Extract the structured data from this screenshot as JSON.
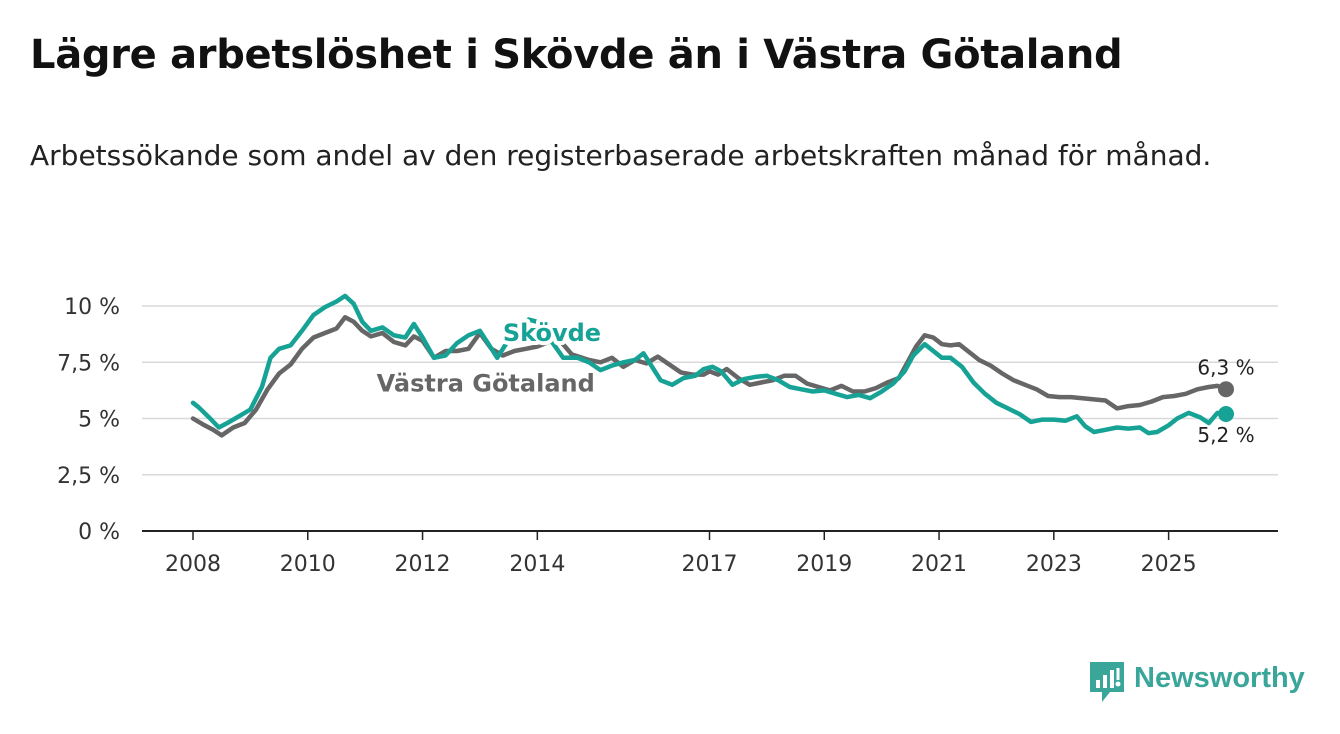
{
  "header": {
    "title": "Lägre arbetslöshet i Skövde än i Västra Götaland",
    "subtitle": "Arbetssökande som andel av den registerbaserade arbetskraften månad för månad."
  },
  "brand": {
    "name": "Newsworthy",
    "color": "#3aa69a"
  },
  "chart_data": {
    "type": "line",
    "title": "Lägre arbetslöshet i Skövde än i Västra Götaland",
    "subtitle": "Arbetssökande som andel av den registerbaserade arbetskraften månad för månad.",
    "xlabel": "",
    "ylabel": "",
    "x_range": [
      2008.0,
      2026.0
    ],
    "ylim": [
      0,
      10
    ],
    "grid": true,
    "x_ticks": [
      {
        "value": 2008,
        "label": "2008"
      },
      {
        "value": 2010,
        "label": "2010"
      },
      {
        "value": 2012,
        "label": "2012"
      },
      {
        "value": 2014,
        "label": "2014"
      },
      {
        "value": 2017,
        "label": "2017"
      },
      {
        "value": 2019,
        "label": "2019"
      },
      {
        "value": 2021,
        "label": "2021"
      },
      {
        "value": 2023,
        "label": "2023"
      },
      {
        "value": 2025,
        "label": "2025"
      }
    ],
    "y_ticks": [
      {
        "value": 0,
        "label": "0 %"
      },
      {
        "value": 2.5,
        "label": "2,5 %"
      },
      {
        "value": 5,
        "label": "5 %"
      },
      {
        "value": 7.5,
        "label": "7,5 %"
      },
      {
        "value": 10,
        "label": "10 %"
      }
    ],
    "series": [
      {
        "name": "Västra Götaland",
        "color": "#666666",
        "end_label": "6,3 %",
        "label_at": [
          2011.2,
          6.2
        ],
        "points": [
          [
            2008.0,
            5.0
          ],
          [
            2008.2,
            4.7
          ],
          [
            2008.35,
            4.5
          ],
          [
            2008.5,
            4.25
          ],
          [
            2008.7,
            4.6
          ],
          [
            2008.9,
            4.8
          ],
          [
            2009.1,
            5.4
          ],
          [
            2009.3,
            6.3
          ],
          [
            2009.5,
            7.0
          ],
          [
            2009.7,
            7.4
          ],
          [
            2009.9,
            8.1
          ],
          [
            2010.1,
            8.6
          ],
          [
            2010.3,
            8.8
          ],
          [
            2010.5,
            9.0
          ],
          [
            2010.65,
            9.5
          ],
          [
            2010.8,
            9.3
          ],
          [
            2010.95,
            8.9
          ],
          [
            2011.1,
            8.65
          ],
          [
            2011.3,
            8.8
          ],
          [
            2011.5,
            8.4
          ],
          [
            2011.7,
            8.25
          ],
          [
            2011.85,
            8.65
          ],
          [
            2012.0,
            8.45
          ],
          [
            2012.2,
            7.7
          ],
          [
            2012.4,
            8.0
          ],
          [
            2012.6,
            8.0
          ],
          [
            2012.8,
            8.1
          ],
          [
            2013.0,
            8.8
          ],
          [
            2013.2,
            8.1
          ],
          [
            2013.4,
            7.8
          ],
          [
            2013.6,
            8.0
          ],
          [
            2013.8,
            8.1
          ],
          [
            2014.0,
            8.2
          ],
          [
            2014.2,
            8.4
          ],
          [
            2014.35,
            8.6
          ],
          [
            2014.6,
            7.85
          ],
          [
            2014.9,
            7.6
          ],
          [
            2015.1,
            7.5
          ],
          [
            2015.3,
            7.7
          ],
          [
            2015.5,
            7.3
          ],
          [
            2015.7,
            7.6
          ],
          [
            2015.9,
            7.45
          ],
          [
            2016.1,
            7.75
          ],
          [
            2016.3,
            7.4
          ],
          [
            2016.5,
            7.05
          ],
          [
            2016.7,
            6.95
          ],
          [
            2016.9,
            6.95
          ],
          [
            2017.0,
            7.1
          ],
          [
            2017.15,
            6.95
          ],
          [
            2017.3,
            7.2
          ],
          [
            2017.5,
            6.8
          ],
          [
            2017.7,
            6.5
          ],
          [
            2017.9,
            6.6
          ],
          [
            2018.1,
            6.7
          ],
          [
            2018.3,
            6.9
          ],
          [
            2018.5,
            6.9
          ],
          [
            2018.7,
            6.55
          ],
          [
            2018.9,
            6.4
          ],
          [
            2019.1,
            6.25
          ],
          [
            2019.3,
            6.45
          ],
          [
            2019.5,
            6.2
          ],
          [
            2019.7,
            6.2
          ],
          [
            2019.9,
            6.35
          ],
          [
            2020.1,
            6.6
          ],
          [
            2020.3,
            6.8
          ],
          [
            2020.45,
            7.5
          ],
          [
            2020.6,
            8.2
          ],
          [
            2020.75,
            8.7
          ],
          [
            2020.9,
            8.6
          ],
          [
            2021.05,
            8.3
          ],
          [
            2021.2,
            8.25
          ],
          [
            2021.35,
            8.3
          ],
          [
            2021.5,
            8.0
          ],
          [
            2021.7,
            7.6
          ],
          [
            2021.9,
            7.35
          ],
          [
            2022.1,
            7.0
          ],
          [
            2022.3,
            6.7
          ],
          [
            2022.5,
            6.5
          ],
          [
            2022.7,
            6.3
          ],
          [
            2022.9,
            6.0
          ],
          [
            2023.1,
            5.95
          ],
          [
            2023.3,
            5.95
          ],
          [
            2023.5,
            5.9
          ],
          [
            2023.7,
            5.85
          ],
          [
            2023.9,
            5.8
          ],
          [
            2024.1,
            5.45
          ],
          [
            2024.3,
            5.55
          ],
          [
            2024.5,
            5.6
          ],
          [
            2024.7,
            5.75
          ],
          [
            2024.9,
            5.95
          ],
          [
            2025.1,
            6.0
          ],
          [
            2025.3,
            6.1
          ],
          [
            2025.5,
            6.3
          ],
          [
            2025.7,
            6.4
          ],
          [
            2025.85,
            6.45
          ],
          [
            2026.0,
            6.3
          ]
        ]
      },
      {
        "name": "Skövde",
        "color": "#16a396",
        "end_label": "5,2 %",
        "label_at": [
          2013.4,
          8.45
        ],
        "points": [
          [
            2008.0,
            5.7
          ],
          [
            2008.1,
            5.5
          ],
          [
            2008.3,
            5.0
          ],
          [
            2008.45,
            4.6
          ],
          [
            2008.6,
            4.8
          ],
          [
            2008.8,
            5.1
          ],
          [
            2009.0,
            5.4
          ],
          [
            2009.2,
            6.4
          ],
          [
            2009.35,
            7.7
          ],
          [
            2009.5,
            8.1
          ],
          [
            2009.7,
            8.25
          ],
          [
            2009.9,
            8.9
          ],
          [
            2010.1,
            9.6
          ],
          [
            2010.3,
            9.95
          ],
          [
            2010.5,
            10.2
          ],
          [
            2010.65,
            10.45
          ],
          [
            2010.8,
            10.1
          ],
          [
            2010.95,
            9.3
          ],
          [
            2011.1,
            8.9
          ],
          [
            2011.3,
            9.05
          ],
          [
            2011.5,
            8.7
          ],
          [
            2011.7,
            8.6
          ],
          [
            2011.85,
            9.2
          ],
          [
            2012.0,
            8.6
          ],
          [
            2012.2,
            7.7
          ],
          [
            2012.4,
            7.8
          ],
          [
            2012.6,
            8.35
          ],
          [
            2012.8,
            8.7
          ],
          [
            2013.0,
            8.9
          ],
          [
            2013.15,
            8.3
          ],
          [
            2013.3,
            7.7
          ],
          [
            2013.5,
            8.5
          ],
          [
            2013.7,
            8.8
          ],
          [
            2013.85,
            9.4
          ],
          [
            2014.0,
            9.3
          ],
          [
            2014.2,
            8.6
          ],
          [
            2014.45,
            7.7
          ],
          [
            2014.7,
            7.7
          ],
          [
            2014.9,
            7.5
          ],
          [
            2015.1,
            7.15
          ],
          [
            2015.3,
            7.35
          ],
          [
            2015.5,
            7.5
          ],
          [
            2015.7,
            7.6
          ],
          [
            2015.85,
            7.9
          ],
          [
            2016.0,
            7.3
          ],
          [
            2016.15,
            6.7
          ],
          [
            2016.35,
            6.5
          ],
          [
            2016.55,
            6.8
          ],
          [
            2016.75,
            6.9
          ],
          [
            2016.9,
            7.2
          ],
          [
            2017.05,
            7.3
          ],
          [
            2017.2,
            7.1
          ],
          [
            2017.4,
            6.5
          ],
          [
            2017.6,
            6.75
          ],
          [
            2017.8,
            6.85
          ],
          [
            2018.0,
            6.9
          ],
          [
            2018.2,
            6.7
          ],
          [
            2018.4,
            6.4
          ],
          [
            2018.6,
            6.3
          ],
          [
            2018.8,
            6.2
          ],
          [
            2019.0,
            6.25
          ],
          [
            2019.2,
            6.1
          ],
          [
            2019.4,
            5.95
          ],
          [
            2019.6,
            6.05
          ],
          [
            2019.8,
            5.9
          ],
          [
            2020.0,
            6.2
          ],
          [
            2020.2,
            6.55
          ],
          [
            2020.4,
            7.1
          ],
          [
            2020.55,
            7.8
          ],
          [
            2020.75,
            8.3
          ],
          [
            2020.9,
            8.0
          ],
          [
            2021.05,
            7.7
          ],
          [
            2021.2,
            7.7
          ],
          [
            2021.4,
            7.3
          ],
          [
            2021.6,
            6.6
          ],
          [
            2021.8,
            6.1
          ],
          [
            2022.0,
            5.7
          ],
          [
            2022.2,
            5.45
          ],
          [
            2022.4,
            5.2
          ],
          [
            2022.6,
            4.85
          ],
          [
            2022.8,
            4.95
          ],
          [
            2023.0,
            4.95
          ],
          [
            2023.2,
            4.9
          ],
          [
            2023.4,
            5.1
          ],
          [
            2023.55,
            4.65
          ],
          [
            2023.7,
            4.4
          ],
          [
            2023.9,
            4.5
          ],
          [
            2024.1,
            4.6
          ],
          [
            2024.3,
            4.55
          ],
          [
            2024.5,
            4.6
          ],
          [
            2024.65,
            4.35
          ],
          [
            2024.8,
            4.4
          ],
          [
            2025.0,
            4.7
          ],
          [
            2025.15,
            5.0
          ],
          [
            2025.35,
            5.25
          ],
          [
            2025.55,
            5.05
          ],
          [
            2025.7,
            4.8
          ],
          [
            2025.85,
            5.25
          ],
          [
            2026.0,
            5.2
          ]
        ]
      }
    ]
  }
}
